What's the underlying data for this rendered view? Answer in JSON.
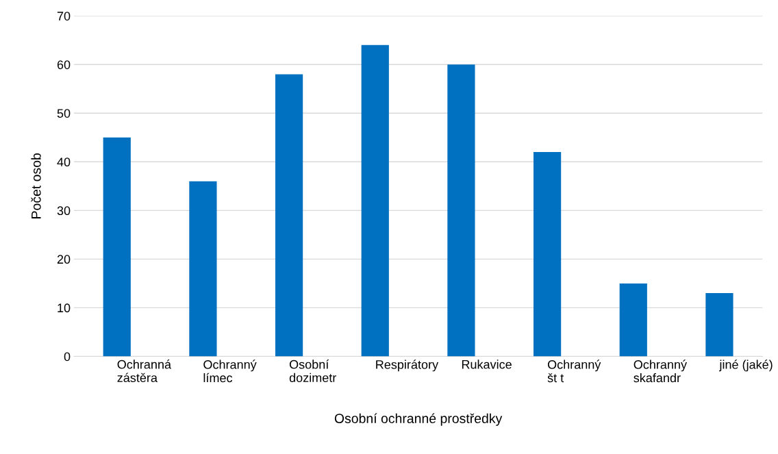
{
  "chart_data": {
    "type": "bar",
    "xlabel": "Osobní ochranné prostředky",
    "ylabel": "Počet osob",
    "categories": [
      "Ochranná\nzástěra",
      "Ochranný\nlímec",
      "Osobní\ndozimetr",
      "Respirátory",
      "Rukavice",
      "Ochranný\nšt t",
      "Ochranný\nskafandr",
      "jiné (jaké)"
    ],
    "values": [
      45,
      36,
      58,
      64,
      60,
      42,
      15,
      13
    ],
    "color": "#0070c0",
    "ylim": [
      0,
      70
    ],
    "yticks": [
      0,
      10,
      20,
      30,
      40,
      50,
      60,
      70
    ],
    "grid": "y",
    "legend": false
  }
}
